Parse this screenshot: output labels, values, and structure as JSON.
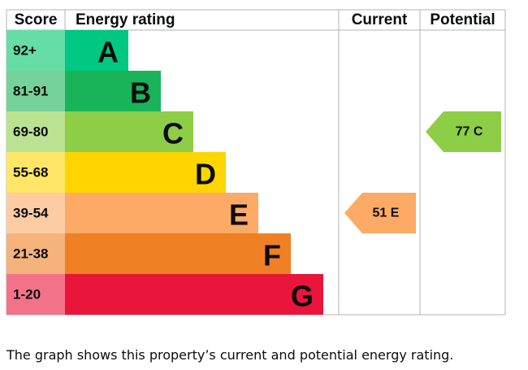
{
  "chart_data": {
    "type": "bar",
    "headers": {
      "score": "Score",
      "rating": "Energy rating",
      "current": "Current",
      "potential": "Potential"
    },
    "bands": [
      {
        "letter": "A",
        "score": "92+",
        "color": "#00c781",
        "score_bg": "#66dda7"
      },
      {
        "letter": "B",
        "score": "81-91",
        "color": "#19b459",
        "score_bg": "#75d29b"
      },
      {
        "letter": "C",
        "score": "69-80",
        "color": "#8dce46",
        "score_bg": "#bbe290"
      },
      {
        "letter": "D",
        "score": "55-68",
        "color": "#ffd500",
        "score_bg": "#ffe666"
      },
      {
        "letter": "E",
        "score": "39-54",
        "color": "#fcaa65",
        "score_bg": "#fdcca3"
      },
      {
        "letter": "F",
        "score": "21-38",
        "color": "#ef8023",
        "score_bg": "#f5b37b"
      },
      {
        "letter": "G",
        "score": "1-20",
        "color": "#e9153b",
        "score_bg": "#f27389"
      }
    ],
    "current": {
      "value": 51,
      "band": "E",
      "label": "51  E",
      "color": "#fcaa65"
    },
    "potential": {
      "value": 77,
      "band": "C",
      "label": "77  C",
      "color": "#8dce46"
    },
    "grid_color": "#b1b4b6"
  },
  "caption": "The graph shows this property’s current and potential energy rating."
}
